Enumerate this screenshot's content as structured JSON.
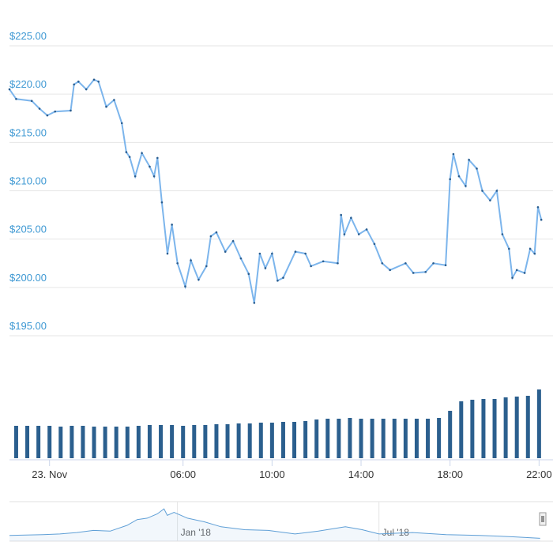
{
  "chart_data": [
    {
      "type": "line",
      "color": "#7cb5ec",
      "marker_color": "#2a5d8f",
      "x": [
        -1.8,
        -1.5,
        -0.8,
        -0.45,
        -0.1,
        0.25,
        0.95,
        1.1,
        1.3,
        1.65,
        2.0,
        2.2,
        2.55,
        2.9,
        3.25,
        3.45,
        3.6,
        3.85,
        4.15,
        4.5,
        4.7,
        4.85,
        5.05,
        5.3,
        5.5,
        5.75,
        6.1,
        6.35,
        6.7,
        7.05,
        7.25,
        7.5,
        7.9,
        8.25,
        8.6,
        8.95,
        9.2,
        9.45,
        9.7,
        10.0,
        10.25,
        10.5,
        11.05,
        11.5,
        11.75,
        12.3,
        12.95,
        13.1,
        13.25,
        13.55,
        13.9,
        14.25,
        14.6,
        14.95,
        15.3,
        16.0,
        16.35,
        16.9,
        17.25,
        17.8,
        18.0,
        18.15,
        18.4,
        18.7,
        18.85,
        19.2,
        19.45,
        19.8,
        20.1,
        20.35,
        20.65,
        20.8,
        21.0,
        21.35,
        21.6,
        21.8,
        21.95,
        22.1
      ],
      "values": [
        220.5,
        219.5,
        219.3,
        218.5,
        217.8,
        218.2,
        218.3,
        221.0,
        221.3,
        220.5,
        221.5,
        221.3,
        218.7,
        219.4,
        217.0,
        214.0,
        213.5,
        211.5,
        213.9,
        212.5,
        211.5,
        213.4,
        208.8,
        203.5,
        206.5,
        202.5,
        200.1,
        202.8,
        200.8,
        202.2,
        205.3,
        205.7,
        203.7,
        204.8,
        203.0,
        201.4,
        198.4,
        203.5,
        202.0,
        203.5,
        200.7,
        201.0,
        203.7,
        203.5,
        202.2,
        202.7,
        202.5,
        207.5,
        205.5,
        207.2,
        205.5,
        206.0,
        204.5,
        202.5,
        201.8,
        202.5,
        201.5,
        201.6,
        202.5,
        202.3,
        211.2,
        213.8,
        211.5,
        210.5,
        213.2,
        212.3,
        210.0,
        209.0,
        210.0,
        205.5,
        204.0,
        201.0,
        201.8,
        201.5,
        204.0,
        203.5,
        208.3,
        207.0
      ],
      "xlim": [
        -1.8,
        22.2
      ],
      "xticks": [
        {
          "value": 0,
          "label": "23. Nov"
        },
        {
          "value": 6,
          "label": "06:00"
        },
        {
          "value": 10,
          "label": "10:00"
        },
        {
          "value": 14,
          "label": "14:00"
        },
        {
          "value": 18,
          "label": "18:00"
        },
        {
          "value": 22,
          "label": "22:00"
        }
      ],
      "ylim": [
        195,
        225
      ],
      "yticks": [
        {
          "value": 225,
          "label": "$225.00"
        },
        {
          "value": 220,
          "label": "$220.00"
        },
        {
          "value": 215,
          "label": "$215.00"
        },
        {
          "value": 210,
          "label": "$210.00"
        },
        {
          "value": 205,
          "label": "$205.00"
        },
        {
          "value": 200,
          "label": "$200.00"
        },
        {
          "value": 195,
          "label": "$195.00"
        }
      ],
      "grid": true
    },
    {
      "type": "bar",
      "color": "#2b5f8e",
      "x": [
        -1.5,
        -1,
        -0.5,
        0,
        0.5,
        1,
        1.5,
        2,
        2.5,
        3,
        3.5,
        4,
        4.5,
        5,
        5.5,
        6,
        6.5,
        7,
        7.5,
        8,
        8.5,
        9,
        9.5,
        10,
        10.5,
        11,
        11.5,
        12,
        12.5,
        13,
        13.5,
        14,
        14.5,
        15,
        15.5,
        16,
        16.5,
        17,
        17.5,
        18,
        18.5,
        19,
        19.5,
        20,
        20.5,
        21,
        21.5,
        22
      ],
      "values": [
        41,
        41,
        41,
        41,
        40,
        41,
        41,
        40,
        40,
        40,
        40,
        41,
        42,
        42,
        42,
        41,
        42,
        42,
        43,
        43,
        44,
        44,
        45,
        45,
        46,
        46,
        47,
        49,
        50,
        50,
        51,
        50,
        50,
        50,
        50,
        50,
        50,
        50,
        51,
        60,
        72,
        74,
        75,
        75,
        77,
        78,
        79,
        87
      ],
      "xlim": [
        -1.8,
        22.2
      ],
      "ylim": [
        0,
        100
      ]
    },
    {
      "type": "line",
      "color": "#5f9fd6",
      "x": [
        -5,
        -4,
        -3.5,
        -3,
        -2.5,
        -2,
        -1.5,
        -1.2,
        -0.9,
        -0.6,
        -0.4,
        -0.3,
        -0.1,
        0.3,
        0.8,
        1.3,
        2,
        2.7,
        3.5,
        4.2,
        5,
        5.5,
        6,
        7,
        8,
        9,
        10,
        10.8
      ],
      "values": [
        8,
        9,
        10,
        12,
        15,
        14,
        22,
        30,
        32,
        38,
        45,
        36,
        40,
        32,
        27,
        20,
        16,
        15,
        10,
        14,
        20,
        16,
        10,
        12,
        9,
        8,
        6,
        4
      ],
      "xlim": [
        -5,
        10.9
      ],
      "ylim": [
        0,
        55
      ],
      "xticks": [
        {
          "value": 0,
          "label": "Jan '18"
        },
        {
          "value": 6,
          "label": "Jul '18"
        }
      ],
      "grid": true
    }
  ]
}
